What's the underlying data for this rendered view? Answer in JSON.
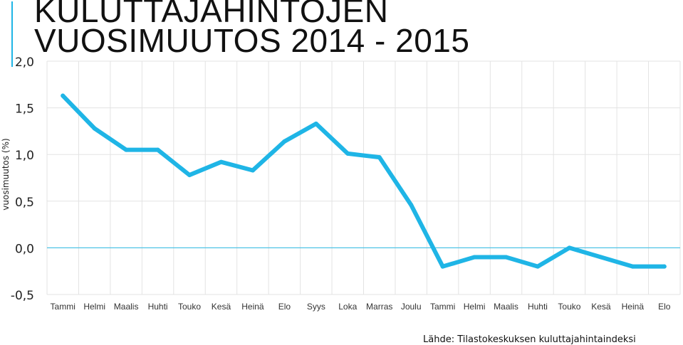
{
  "chart_data": {
    "type": "line",
    "title_line1": "KULUTTAJAHINTOJEN",
    "title_line2": "VUOSIMUUTOS 2014 - 2015",
    "ylabel": "vuosimuutos (%)",
    "xlabel": "",
    "ylim": [
      -0.5,
      2.0
    ],
    "yticks": [
      -0.5,
      0.0,
      0.5,
      1.0,
      1.5,
      2.0
    ],
    "ytick_labels": [
      "-0,5",
      "0,0",
      "0,5",
      "1,0",
      "1,5",
      "2,0"
    ],
    "grid": true,
    "categories": [
      "Tammi",
      "Helmi",
      "Maalis",
      "Huhti",
      "Touko",
      "Kesä",
      "Heinä",
      "Elo",
      "Syys",
      "Loka",
      "Marras",
      "Joulu",
      "Tammi",
      "Helmi",
      "Maalis",
      "Huhti",
      "Touko",
      "Kesä",
      "Heinä",
      "Elo"
    ],
    "series": [
      {
        "values": [
          1.63,
          1.28,
          1.05,
          1.05,
          0.78,
          0.92,
          0.83,
          1.14,
          1.33,
          1.01,
          0.97,
          0.46,
          -0.2,
          -0.1,
          -0.1,
          -0.2,
          0.0,
          -0.1,
          -0.2,
          -0.2
        ],
        "color": "#1fb5e6"
      }
    ],
    "zero_line_color": "#4fc3e6",
    "source": "Lähde: Tilastokeskuksen kuluttajahintaindeksi"
  }
}
